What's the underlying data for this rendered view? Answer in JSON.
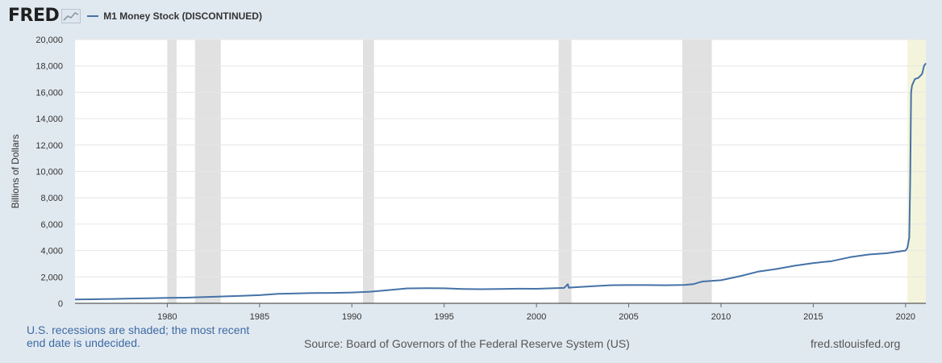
{
  "header": {
    "logo": "FRED",
    "logo_icon": "chart-line-icon",
    "legend_label": "M1 Money Stock (DISCONTINUED)"
  },
  "footer": {
    "note": "U.S. recessions are shaded; the most recent end date is undecided.",
    "source": "Source: Board of Governors of the Federal Reserve System (US)",
    "site": "fred.stlouisfed.org"
  },
  "colors": {
    "line": "#4572a7",
    "recession": "#e1e1e1",
    "current_recession": "#f4f4dc",
    "plot_bg": "#ffffff",
    "page_bg": "#e1e9f0",
    "grid": "#e6e6e6"
  },
  "chart_data": {
    "type": "line",
    "title": "M1 Money Stock (DISCONTINUED)",
    "xlabel": "",
    "ylabel": "Billions of Dollars",
    "xlim": [
      1975,
      2021.1
    ],
    "ylim": [
      0,
      20000
    ],
    "xticks": [
      1980,
      1985,
      1990,
      1995,
      2000,
      2005,
      2010,
      2015,
      2020
    ],
    "xtick_labels": [
      "1980",
      "1985",
      "1990",
      "1995",
      "2000",
      "2005",
      "2010",
      "2015",
      "2020"
    ],
    "yticks": [
      0,
      2000,
      4000,
      6000,
      8000,
      10000,
      12000,
      14000,
      16000,
      18000,
      20000
    ],
    "ytick_labels": [
      "0",
      "2,000",
      "4,000",
      "6,000",
      "8,000",
      "10,000",
      "12,000",
      "14,000",
      "16,000",
      "18,000",
      "20,000"
    ],
    "grid": true,
    "recessions": [
      {
        "start": 1980.0,
        "end": 1980.5
      },
      {
        "start": 1981.5,
        "end": 1982.9
      },
      {
        "start": 1990.6,
        "end": 1991.2
      },
      {
        "start": 2001.2,
        "end": 2001.9
      },
      {
        "start": 2007.9,
        "end": 2009.5
      }
    ],
    "current_recession": {
      "start": 2020.1,
      "end": 2021.1
    },
    "series": [
      {
        "name": "M1 Money Stock (DISCONTINUED)",
        "x": [
          1975,
          1976,
          1977,
          1978,
          1979,
          1980,
          1981,
          1982,
          1983,
          1984,
          1985,
          1986,
          1987,
          1988,
          1989,
          1990,
          1991,
          1992,
          1993,
          1994,
          1995,
          1996,
          1997,
          1998,
          1999,
          2000,
          2001,
          2001.5,
          2001.7,
          2001.75,
          2001.9,
          2002,
          2003,
          2004,
          2005,
          2006,
          2007,
          2008,
          2008.5,
          2008.8,
          2009,
          2010,
          2011,
          2012,
          2013,
          2014,
          2015,
          2016,
          2017,
          2018,
          2019,
          2020,
          2020.1,
          2020.2,
          2020.25,
          2020.3,
          2020.35,
          2020.5,
          2020.7,
          2020.9,
          2021.0,
          2021.1
        ],
        "values": [
          290,
          305,
          330,
          360,
          385,
          410,
          430,
          470,
          520,
          560,
          620,
          720,
          750,
          785,
          790,
          820,
          880,
          1000,
          1130,
          1150,
          1140,
          1090,
          1070,
          1090,
          1110,
          1100,
          1150,
          1170,
          1450,
          1180,
          1200,
          1210,
          1290,
          1370,
          1380,
          1380,
          1370,
          1390,
          1450,
          1580,
          1650,
          1750,
          2050,
          2400,
          2600,
          2850,
          3050,
          3200,
          3500,
          3700,
          3800,
          4000,
          4200,
          5000,
          9000,
          16000,
          16500,
          17000,
          17100,
          17400,
          18000,
          18200
        ]
      }
    ]
  }
}
